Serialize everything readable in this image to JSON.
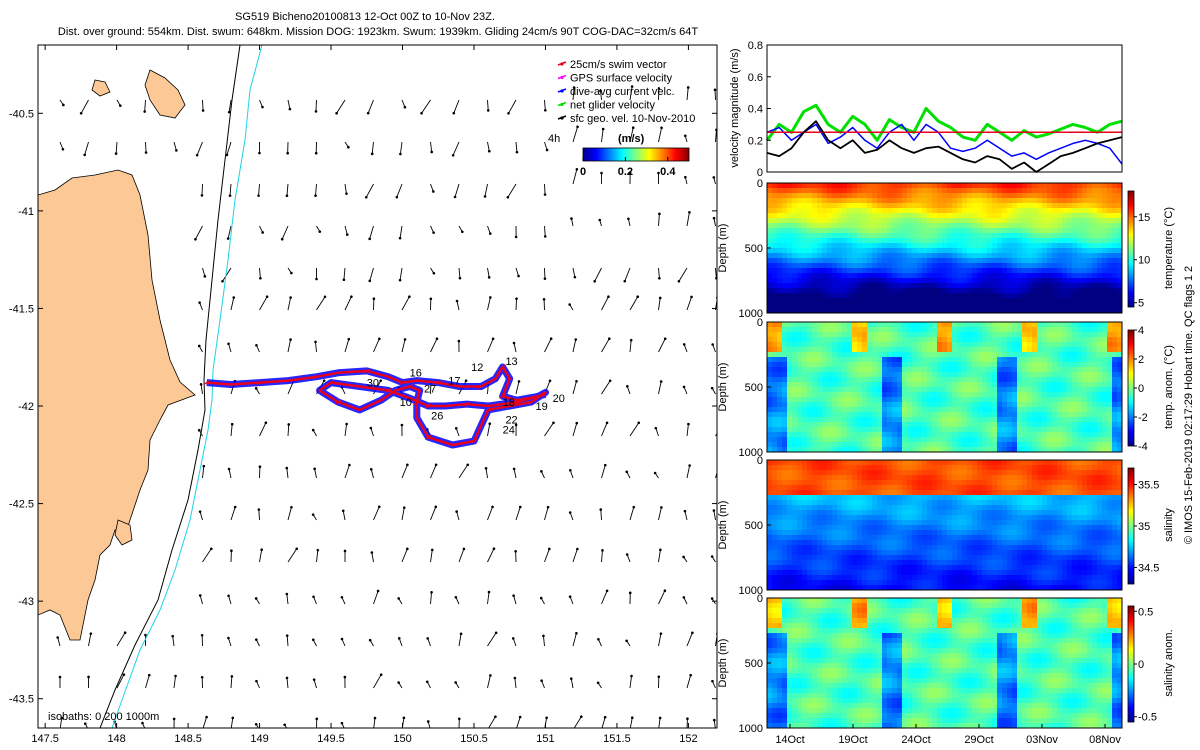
{
  "title": {
    "line1": "SG519 Bicheno20100813 12-Oct 00Z to 10-Nov 23Z.",
    "line2": "Dist. over ground: 554km. Dist. swum: 648km. Mission DOG: 1923km. Swum: 1939km. Gliding 24cm/s 90T COG-DAC=32cm/s 64T"
  },
  "credit": "© IMOS 15-Feb-2019 02:17:29 Hobart time. QC flags 1  2",
  "colors": {
    "land": "#FCC996",
    "cyan_isobath": "#1FD3E6",
    "swim": "#E8001C",
    "gps": "#FF00FF",
    "dac": "#0000FF",
    "net": "#00E000",
    "sfc": "#000000"
  },
  "chart_data": [
    {
      "id": "map",
      "type": "map",
      "xlim": [
        147.45,
        152.2
      ],
      "ylim": [
        -43.65,
        -40.15
      ],
      "xticks": [
        147.5,
        148,
        148.5,
        149,
        149.5,
        150,
        150.5,
        151,
        151.5,
        152
      ],
      "yticks": [
        -40.5,
        -41,
        -41.5,
        -42,
        -42.5,
        -43,
        -43.5
      ],
      "legend": [
        {
          "label": "25cm/s swim vector",
          "color": "#E8001C"
        },
        {
          "label": "GPS surface velocity",
          "color": "#FF00FF"
        },
        {
          "label": "dive-avg current velc.",
          "color": "#0000FF"
        },
        {
          "label": "net glider velocity",
          "color": "#00E000"
        },
        {
          "label": "sfc geo. vel. 10-Nov-2010",
          "color": "#000000"
        }
      ],
      "legend_extra": "4h",
      "colorbar": {
        "label": "(m/s)",
        "ticks": [
          0,
          0.2,
          0.4
        ],
        "tick_labels": [
          "0",
          "0.2",
          "0.4"
        ],
        "range": [
          0,
          0.5
        ]
      },
      "isobaths_label": "isobaths: 0   200   1000m",
      "track": [
        [
          148.63,
          -41.88
        ],
        [
          148.8,
          -41.89
        ],
        [
          149.0,
          -41.88
        ],
        [
          149.2,
          -41.87
        ],
        [
          149.4,
          -41.85
        ],
        [
          149.55,
          -41.83
        ],
        [
          149.75,
          -41.82
        ],
        [
          149.9,
          -41.85
        ],
        [
          150.0,
          -41.88
        ],
        [
          150.1,
          -41.87
        ],
        [
          150.25,
          -41.88
        ],
        [
          150.4,
          -41.9
        ],
        [
          150.55,
          -41.9
        ],
        [
          150.65,
          -41.86
        ],
        [
          150.7,
          -41.8
        ],
        [
          150.75,
          -41.86
        ],
        [
          150.7,
          -41.95
        ],
        [
          150.8,
          -41.97
        ],
        [
          150.95,
          -41.95
        ],
        [
          151.0,
          -41.93
        ],
        [
          150.9,
          -41.98
        ],
        [
          150.75,
          -42.0
        ],
        [
          150.6,
          -42.02
        ],
        [
          150.55,
          -42.1
        ],
        [
          150.5,
          -42.18
        ],
        [
          150.35,
          -42.2
        ],
        [
          150.18,
          -42.16
        ],
        [
          150.1,
          -42.06
        ],
        [
          150.1,
          -41.98
        ],
        [
          150.12,
          -41.92
        ],
        [
          150.05,
          -41.9
        ],
        [
          149.95,
          -41.92
        ],
        [
          149.85,
          -41.97
        ],
        [
          149.7,
          -42.02
        ],
        [
          149.55,
          -41.98
        ],
        [
          149.42,
          -41.92
        ],
        [
          149.5,
          -41.88
        ],
        [
          149.7,
          -41.9
        ],
        [
          149.9,
          -41.92
        ],
        [
          150.05,
          -41.96
        ],
        [
          150.18,
          -42.0
        ],
        [
          150.3,
          -42.0
        ],
        [
          150.45,
          -41.99
        ],
        [
          150.6,
          -42.0
        ],
        [
          150.8,
          -41.98
        ],
        [
          151.0,
          -41.94
        ]
      ],
      "track_labels": [
        {
          "text": "12",
          "lon": 150.48,
          "lat": -41.82
        },
        {
          "text": "13",
          "lon": 150.72,
          "lat": -41.79
        },
        {
          "text": "16",
          "lon": 150.05,
          "lat": -41.85
        },
        {
          "text": "17",
          "lon": 150.32,
          "lat": -41.89
        },
        {
          "text": "30",
          "lon": 149.75,
          "lat": -41.9
        },
        {
          "text": "27",
          "lon": 150.15,
          "lat": -41.93
        },
        {
          "text": "10",
          "lon": 149.98,
          "lat": -42.0
        },
        {
          "text": "26",
          "lon": 150.2,
          "lat": -42.07
        },
        {
          "text": "18",
          "lon": 150.7,
          "lat": -42.0
        },
        {
          "text": "19",
          "lon": 150.93,
          "lat": -42.02
        },
        {
          "text": "20",
          "lon": 151.05,
          "lat": -41.98
        },
        {
          "text": "22",
          "lon": 150.72,
          "lat": -42.09
        },
        {
          "text": "24",
          "lon": 150.7,
          "lat": -42.14
        }
      ]
    },
    {
      "id": "velocity",
      "type": "line",
      "ylabel": "velocity magnitude (m/s)",
      "ylim": [
        0,
        0.8
      ],
      "yticks": [
        0,
        0.2,
        0.4,
        0.6,
        0.8
      ],
      "x": [
        0,
        1,
        2,
        3,
        4,
        5,
        6,
        7,
        8,
        9,
        10,
        11,
        12,
        13,
        14,
        15,
        16,
        17,
        18,
        19,
        20,
        21,
        22,
        23,
        24,
        25,
        26,
        27,
        28,
        29
      ],
      "series": [
        {
          "color": "#00E000",
          "values": [
            0.2,
            0.3,
            0.25,
            0.38,
            0.42,
            0.3,
            0.25,
            0.35,
            0.3,
            0.2,
            0.33,
            0.28,
            0.25,
            0.4,
            0.32,
            0.28,
            0.22,
            0.2,
            0.3,
            0.25,
            0.2,
            0.26,
            0.22,
            0.24,
            0.27,
            0.3,
            0.28,
            0.25,
            0.3,
            0.32
          ]
        },
        {
          "color": "#0000FF",
          "values": [
            0.25,
            0.28,
            0.2,
            0.25,
            0.3,
            0.18,
            0.22,
            0.28,
            0.2,
            0.15,
            0.25,
            0.3,
            0.2,
            0.3,
            0.25,
            0.15,
            0.13,
            0.15,
            0.2,
            0.15,
            0.1,
            0.12,
            0.08,
            0.12,
            0.15,
            0.18,
            0.2,
            0.18,
            0.15,
            0.05
          ]
        },
        {
          "color": "#E8001C",
          "values": [
            0.25,
            0.25,
            0.25,
            0.25,
            0.25,
            0.25,
            0.25,
            0.25,
            0.25,
            0.25,
            0.25,
            0.25,
            0.25,
            0.25,
            0.25,
            0.25,
            0.25,
            0.25,
            0.25,
            0.25,
            0.25,
            0.25,
            0.25,
            0.25,
            0.25,
            0.25,
            0.25,
            0.25,
            0.25,
            0.25
          ]
        },
        {
          "color": "#000000",
          "values": [
            0.12,
            0.1,
            0.15,
            0.25,
            0.32,
            0.2,
            0.15,
            0.2,
            0.12,
            0.14,
            0.2,
            0.15,
            0.12,
            0.15,
            0.16,
            0.12,
            0.08,
            0.06,
            0.1,
            0.08,
            0.02,
            0.06,
            0.0,
            0.05,
            0.1,
            0.12,
            0.15,
            0.18,
            0.2,
            0.22
          ]
        }
      ]
    },
    {
      "id": "temperature",
      "type": "heatmap",
      "ylabel": "Depth (m)",
      "ylim": [
        1000,
        0
      ],
      "yticks": [
        0,
        500,
        1000
      ],
      "colorbar_label": "temperature (°C)",
      "colorbar_range": [
        4.5,
        18
      ],
      "colorbar_ticks": [
        5,
        10,
        15
      ]
    },
    {
      "id": "temp_anom",
      "type": "heatmap",
      "ylabel": "Depth (m)",
      "ylim": [
        1000,
        0
      ],
      "yticks": [
        0,
        500,
        1000
      ],
      "colorbar_label": "temp. anom. (°C)",
      "colorbar_range": [
        -4,
        4
      ],
      "colorbar_ticks": [
        -4,
        -2,
        0,
        2,
        4
      ]
    },
    {
      "id": "salinity",
      "type": "heatmap",
      "ylabel": "Depth (m)",
      "ylim": [
        1000,
        0
      ],
      "yticks": [
        0,
        500,
        1000
      ],
      "colorbar_label": "salinity",
      "colorbar_range": [
        34.3,
        35.7
      ],
      "colorbar_ticks": [
        34.5,
        35,
        35.5
      ]
    },
    {
      "id": "sal_anom",
      "type": "heatmap",
      "ylabel": "Depth (m)",
      "ylim": [
        1000,
        0
      ],
      "yticks": [
        0,
        500,
        1000
      ],
      "colorbar_label": "salinity anom.",
      "colorbar_range": [
        -0.55,
        0.55
      ],
      "colorbar_ticks": [
        -0.5,
        0,
        0.5
      ],
      "xtick_labels": [
        "14Oct",
        "19Oct",
        "24Oct",
        "29Oct",
        "03Nov",
        "08Nov"
      ]
    }
  ]
}
